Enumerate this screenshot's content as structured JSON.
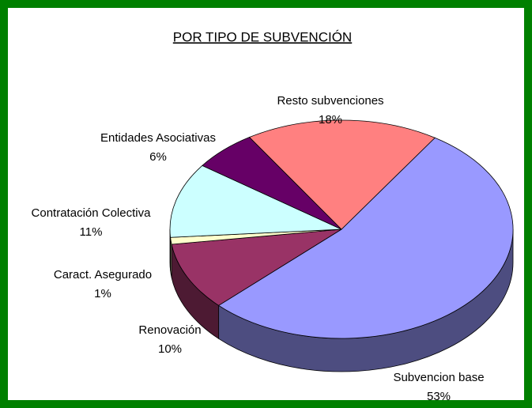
{
  "chart_data": {
    "type": "pie3d",
    "title": "POR TIPO DE SUBVENCIÓN",
    "categories": [
      "Subvencion base",
      "Renovación",
      "Caract. Asegurado",
      "Contratación Colectiva",
      "Entidades Asociativas",
      "Resto subvenciones"
    ],
    "values": [
      53,
      10,
      1,
      11,
      6,
      18
    ],
    "value_labels": [
      "53%",
      "10%",
      "1%",
      "11%",
      "6%",
      "18%"
    ],
    "colors": [
      "#9999ff",
      "#993366",
      "#ffffcc",
      "#ccffff",
      "#660066",
      "#ff8080"
    ]
  }
}
